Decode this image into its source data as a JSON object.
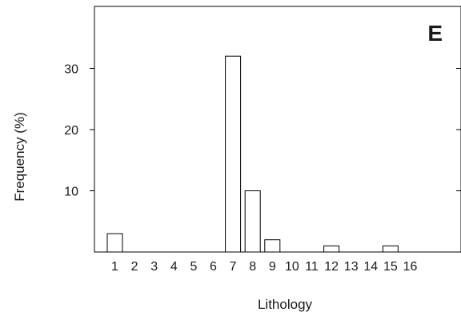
{
  "chart_data": {
    "type": "bar",
    "panel_label": "E",
    "xlabel": "Lithology",
    "ylabel": "Frequency (%)",
    "categories": [
      "1",
      "2",
      "3",
      "4",
      "5",
      "6",
      "7",
      "8",
      "9",
      "10",
      "11",
      "12",
      "13",
      "14",
      "15",
      "16"
    ],
    "values": [
      3,
      0,
      0,
      0,
      0,
      0,
      32,
      10,
      2,
      0,
      0,
      1,
      0,
      0,
      1,
      0
    ],
    "ylim": [
      0,
      40
    ],
    "yticks": [
      10,
      20,
      30
    ],
    "grid": false,
    "legend": "none",
    "bar_fill": "#ffffff",
    "bar_stroke": "#000000"
  }
}
